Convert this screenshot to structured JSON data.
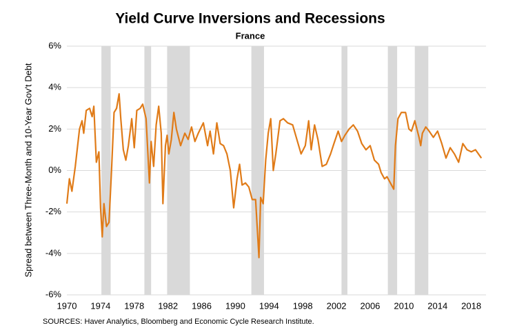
{
  "chart_data": {
    "type": "line",
    "title": "Yield Curve Inversions and Recessions",
    "subtitle": "France",
    "y_label": "Spread between Three-Month and 10-Year Gov't Debt",
    "source": "SOURCES: Haver Analytics, Bloomberg and Economic Cycle Research Institute.",
    "color": "#e07b18",
    "recession_color": "#d9d9d9",
    "grid": true,
    "xlim": [
      1970,
      2019.75
    ],
    "xticks": [
      1970,
      1974,
      1978,
      1982,
      1986,
      1990,
      1994,
      1998,
      2002,
      2006,
      2010,
      2014,
      2018
    ],
    "ylim": [
      -6,
      6
    ],
    "yticks": [
      {
        "value": -6,
        "label": "-6%"
      },
      {
        "value": -4,
        "label": "-4%"
      },
      {
        "value": -2,
        "label": "-2%"
      },
      {
        "value": 0,
        "label": "0%"
      },
      {
        "value": 2,
        "label": "2%"
      },
      {
        "value": 4,
        "label": "4%"
      },
      {
        "value": 6,
        "label": "6%"
      }
    ],
    "recessions": [
      {
        "start": 1974.1,
        "end": 1975.2
      },
      {
        "start": 1979.2,
        "end": 1980.0
      },
      {
        "start": 1981.9,
        "end": 1984.6
      },
      {
        "start": 1991.9,
        "end": 1993.4
      },
      {
        "start": 2002.6,
        "end": 2003.3
      },
      {
        "start": 2008.1,
        "end": 2009.2
      },
      {
        "start": 2011.3,
        "end": 2012.9
      }
    ],
    "x": [
      1970.0,
      1970.3,
      1970.6,
      1971.0,
      1971.5,
      1971.8,
      1972.0,
      1972.3,
      1972.7,
      1973.0,
      1973.2,
      1973.5,
      1973.8,
      1974.0,
      1974.2,
      1974.4,
      1974.7,
      1975.0,
      1975.3,
      1975.6,
      1975.9,
      1976.2,
      1976.4,
      1976.7,
      1977.0,
      1977.3,
      1977.7,
      1978.0,
      1978.3,
      1978.7,
      1979.0,
      1979.4,
      1979.8,
      1980.0,
      1980.3,
      1980.6,
      1980.9,
      1981.2,
      1981.4,
      1981.7,
      1981.9,
      1982.1,
      1982.4,
      1982.7,
      1983.0,
      1983.5,
      1984.0,
      1984.4,
      1984.8,
      1985.2,
      1985.6,
      1986.2,
      1986.7,
      1987.0,
      1987.4,
      1987.8,
      1988.2,
      1988.6,
      1989.0,
      1989.4,
      1989.8,
      1990.2,
      1990.5,
      1990.8,
      1991.2,
      1991.6,
      1992.0,
      1992.4,
      1992.6,
      1992.8,
      1993.0,
      1993.3,
      1993.6,
      1993.9,
      1994.2,
      1994.5,
      1994.8,
      1995.3,
      1995.7,
      1996.2,
      1996.8,
      1997.3,
      1997.8,
      1998.3,
      1998.7,
      1999.0,
      1999.4,
      1999.8,
      2000.3,
      2000.8,
      2001.3,
      2001.7,
      2002.2,
      2002.6,
      2003.0,
      2003.5,
      2004.0,
      2004.5,
      2005.0,
      2005.5,
      2006.0,
      2006.5,
      2007.0,
      2007.3,
      2007.7,
      2008.0,
      2008.4,
      2008.8,
      2009.0,
      2009.3,
      2009.7,
      2010.2,
      2010.6,
      2010.9,
      2011.3,
      2011.8,
      2012.0,
      2012.2,
      2012.6,
      2013.0,
      2013.5,
      2014.0,
      2014.5,
      2015.0,
      2015.5,
      2016.0,
      2016.5,
      2017.0,
      2017.5,
      2018.0,
      2018.5,
      2019.2
    ],
    "values": [
      -1.6,
      -0.4,
      -1.0,
      0.2,
      2.0,
      2.4,
      1.8,
      2.9,
      3.0,
      2.6,
      3.1,
      0.4,
      0.9,
      -1.8,
      -3.2,
      -1.6,
      -2.7,
      -2.5,
      0.0,
      2.8,
      3.0,
      3.7,
      2.5,
      1.0,
      0.5,
      1.2,
      2.5,
      1.1,
      2.9,
      3.0,
      3.2,
      2.5,
      -0.6,
      1.4,
      0.2,
      2.2,
      3.1,
      1.8,
      -1.6,
      1.2,
      1.7,
      0.8,
      1.5,
      2.8,
      2.0,
      1.2,
      1.8,
      1.5,
      2.1,
      1.4,
      1.8,
      2.3,
      1.2,
      1.9,
      0.8,
      2.3,
      1.3,
      1.2,
      0.8,
      0.0,
      -1.8,
      -0.4,
      0.3,
      -0.7,
      -0.6,
      -0.8,
      -1.4,
      -1.4,
      -2.8,
      -4.2,
      -1.3,
      -1.6,
      0.5,
      1.8,
      2.5,
      0.0,
      0.8,
      2.4,
      2.5,
      2.3,
      2.2,
      1.5,
      0.8,
      1.2,
      2.4,
      1.0,
      2.2,
      1.5,
      0.2,
      0.3,
      0.8,
      1.3,
      1.9,
      1.4,
      1.7,
      2.0,
      2.2,
      1.9,
      1.3,
      1.0,
      1.2,
      0.5,
      0.3,
      -0.1,
      -0.4,
      -0.3,
      -0.6,
      -0.9,
      1.2,
      2.5,
      2.8,
      2.8,
      2.0,
      1.9,
      2.4,
      1.6,
      1.2,
      1.8,
      2.1,
      1.9,
      1.6,
      1.9,
      1.3,
      0.6,
      1.1,
      0.8,
      0.4,
      1.3,
      1.0,
      0.9,
      1.0,
      0.6
    ]
  }
}
